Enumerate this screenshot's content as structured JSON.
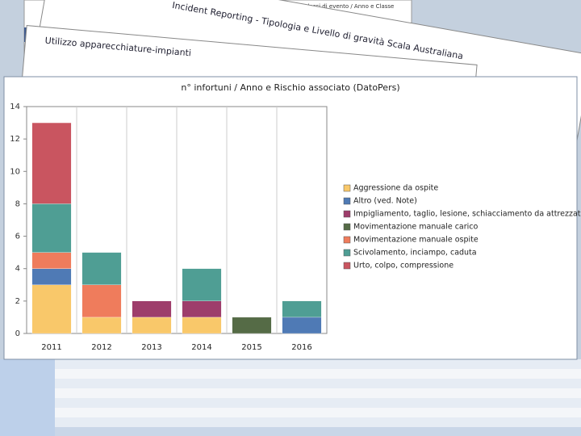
{
  "background": {
    "titles": [
      "Andamento numero di alcune classi di evento / Anno e Classe",
      "Incident Reporting - Tipologia e Livello di gravità Scala Australiana",
      "Utilizzo apparecchiature-impianti"
    ]
  },
  "chart_data": {
    "type": "stacked-bar",
    "title": "n° infortuni / Anno  e Rischio associato (DatoPers)",
    "categories": [
      "2011",
      "2012",
      "2013",
      "2014",
      "2015",
      "2016"
    ],
    "series": [
      {
        "name": "Aggressione da ospite",
        "color": "#f9c86a",
        "values": [
          3,
          1,
          1,
          1,
          0,
          0
        ]
      },
      {
        "name": "Altro (ved. Note)",
        "color": "#4f7ab5",
        "values": [
          1,
          0,
          0,
          0,
          0,
          1
        ]
      },
      {
        "name": "Impigliamento, taglio, lesione, schiacciamento da attrezzatura",
        "color": "#9e3d6b",
        "values": [
          0,
          0,
          1,
          1,
          0,
          0
        ]
      },
      {
        "name": "Movimentazione manuale carico",
        "color": "#556b46",
        "values": [
          0,
          0,
          0,
          0,
          1,
          0
        ]
      },
      {
        "name": "Movimentazione manuale ospite",
        "color": "#ef7c5c",
        "values": [
          1,
          2,
          0,
          0,
          0,
          0
        ]
      },
      {
        "name": "Scivolamento, inciampo, caduta",
        "color": "#4f9e94",
        "values": [
          3,
          2,
          0,
          2,
          0,
          1
        ]
      },
      {
        "name": "Urto, colpo, compressione",
        "color": "#c95560",
        "values": [
          5,
          0,
          0,
          0,
          0,
          0
        ]
      }
    ],
    "ylim": [
      0,
      14
    ],
    "yticks": [
      0,
      2,
      4,
      6,
      8,
      10,
      12,
      14
    ],
    "grid": true,
    "legend": "right"
  }
}
